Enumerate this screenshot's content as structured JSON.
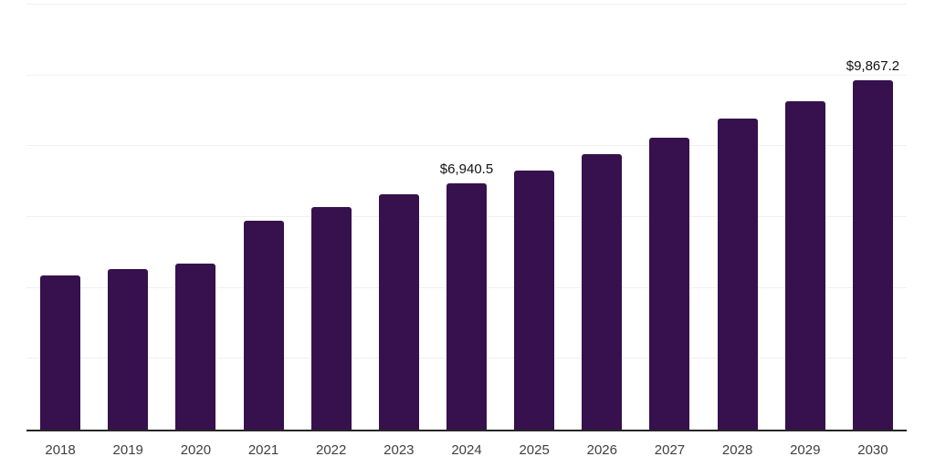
{
  "chart_data": {
    "type": "bar",
    "title": "",
    "xlabel": "",
    "ylabel": "",
    "categories": [
      "2018",
      "2019",
      "2020",
      "2021",
      "2022",
      "2023",
      "2024",
      "2025",
      "2026",
      "2027",
      "2028",
      "2029",
      "2030"
    ],
    "values": [
      4340,
      4540,
      4680,
      5900,
      6290,
      6640,
      6940.5,
      7320,
      7790,
      8250,
      8770,
      9280,
      9867.2
    ],
    "data_labels": {
      "2024": "$6,940.5",
      "2030": "$9,867.2"
    },
    "ylim": [
      0,
      12000
    ],
    "gridline_step": 2000,
    "grid": true,
    "legend": false,
    "colors": {
      "bar": "#36114d",
      "grid": "#f0f0f0",
      "axis": "#262626",
      "tick_label": "#404040",
      "data_label": "#111111",
      "background": "#ffffff"
    }
  }
}
